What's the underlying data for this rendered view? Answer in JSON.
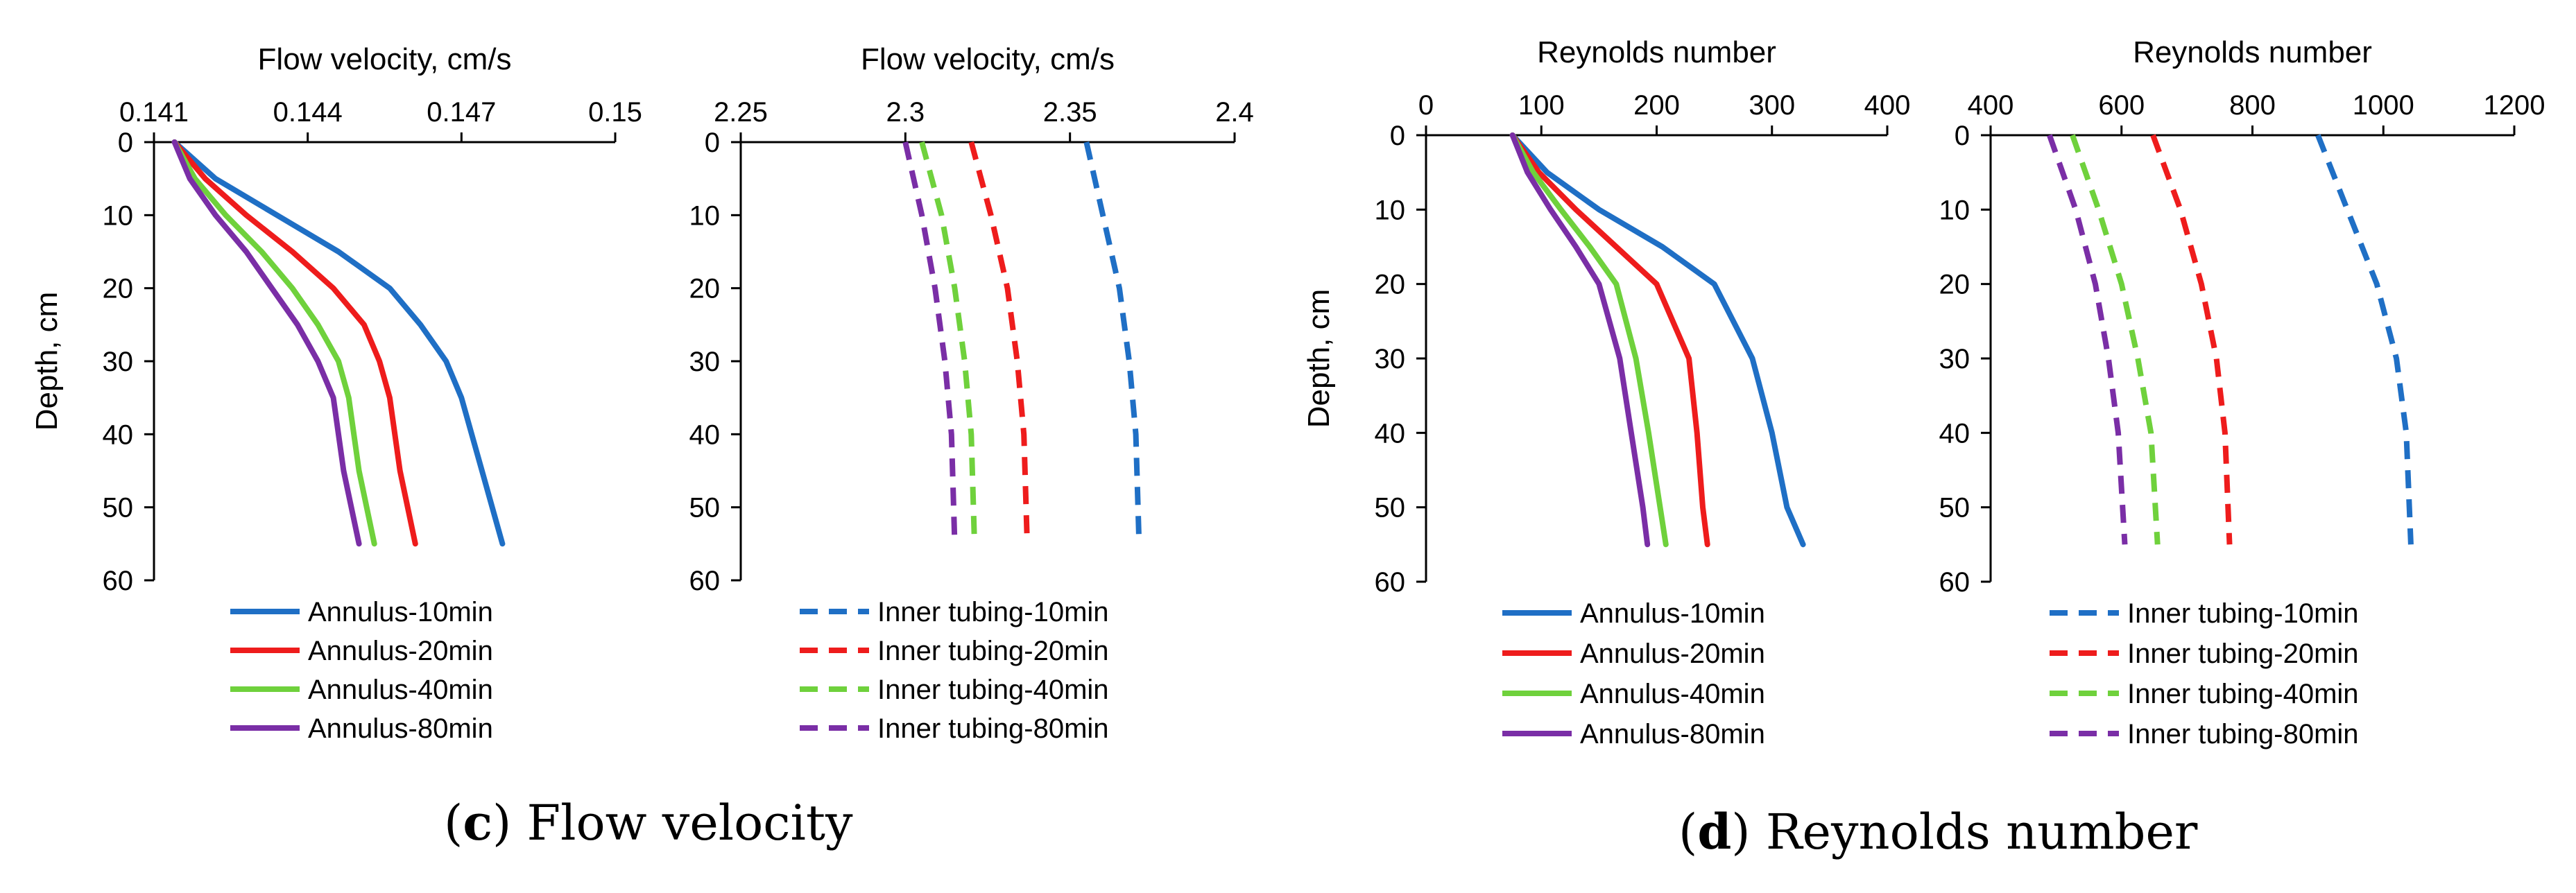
{
  "captions": {
    "c": {
      "letter": "c",
      "text": "Flow velocity"
    },
    "d": {
      "letter": "d",
      "text": "Reynolds number"
    }
  },
  "colors": {
    "10min": "#1f6fc5",
    "20min": "#ee1c1c",
    "40min": "#6fd13c",
    "80min": "#7a2ea6",
    "axis": "#000000"
  },
  "chart_data": [
    {
      "id": "c-annulus",
      "type": "line",
      "title": "Flow velocity, cm/s",
      "xlabel": "Flow velocity, cm/s",
      "ylabel": "Depth, cm",
      "xlim": [
        0.141,
        0.15
      ],
      "ylim": [
        0,
        60
      ],
      "xticks": [
        0.141,
        0.144,
        0.147,
        0.15
      ],
      "xtick_labels": [
        "0.141",
        "0.144",
        "0.147",
        "0.15"
      ],
      "yticks": [
        0,
        10,
        20,
        30,
        40,
        50,
        60
      ],
      "ytick_labels": [
        "0",
        "10",
        "20",
        "30",
        "40",
        "50",
        "60"
      ],
      "dashed": false,
      "legend": "below",
      "series": [
        {
          "name": "Annulus-10min",
          "key": "10min",
          "x": [
            0.1414,
            0.1422,
            0.1434,
            0.1446,
            0.1456,
            0.1462,
            0.1467,
            0.147,
            0.1474,
            0.1478
          ],
          "y": [
            0,
            5,
            10,
            15,
            20,
            25,
            30,
            35,
            45,
            55
          ]
        },
        {
          "name": "Annulus-20min",
          "key": "20min",
          "x": [
            0.1414,
            0.142,
            0.1428,
            0.1437,
            0.1445,
            0.1451,
            0.1454,
            0.1456,
            0.1458,
            0.1461
          ],
          "y": [
            0,
            5,
            10,
            15,
            20,
            25,
            30,
            35,
            45,
            55
          ]
        },
        {
          "name": "Annulus-40min",
          "key": "40min",
          "x": [
            0.1414,
            0.1418,
            0.1424,
            0.1431,
            0.1437,
            0.1442,
            0.1446,
            0.1448,
            0.145,
            0.1453
          ],
          "y": [
            0,
            5,
            10,
            15,
            20,
            25,
            30,
            35,
            45,
            55
          ]
        },
        {
          "name": "Annulus-80min",
          "key": "80min",
          "x": [
            0.1414,
            0.1417,
            0.1422,
            0.1428,
            0.1433,
            0.1438,
            0.1442,
            0.1445,
            0.1447,
            0.145
          ],
          "y": [
            0,
            5,
            10,
            15,
            20,
            25,
            30,
            35,
            45,
            55
          ]
        }
      ]
    },
    {
      "id": "c-inner",
      "type": "line",
      "title": "Flow velocity, cm/s",
      "xlabel": "Flow velocity, cm/s",
      "ylabel": "",
      "xlim": [
        2.25,
        2.4
      ],
      "ylim": [
        0,
        60
      ],
      "xticks": [
        2.25,
        2.3,
        2.35,
        2.4
      ],
      "xtick_labels": [
        "2.25",
        "2.3",
        "2.35",
        "2.4"
      ],
      "yticks": [
        0,
        10,
        20,
        30,
        40,
        50,
        60
      ],
      "ytick_labels": [
        "0",
        "10",
        "20",
        "30",
        "40",
        "50",
        "60"
      ],
      "dashed": true,
      "legend": "below",
      "series": [
        {
          "name": "Inner tubing-10min",
          "key": "10min",
          "x": [
            2.355,
            2.36,
            2.365,
            2.368,
            2.37,
            2.371
          ],
          "y": [
            0,
            10,
            20,
            30,
            40,
            55
          ]
        },
        {
          "name": "Inner tubing-20min",
          "key": "20min",
          "x": [
            2.32,
            2.326,
            2.331,
            2.334,
            2.336,
            2.337
          ],
          "y": [
            0,
            10,
            20,
            30,
            40,
            55
          ]
        },
        {
          "name": "Inner tubing-40min",
          "key": "40min",
          "x": [
            2.305,
            2.311,
            2.315,
            2.318,
            2.32,
            2.321
          ],
          "y": [
            0,
            10,
            20,
            30,
            40,
            55
          ]
        },
        {
          "name": "Inner tubing-80min",
          "key": "80min",
          "x": [
            2.3,
            2.305,
            2.309,
            2.312,
            2.314,
            2.315
          ],
          "y": [
            0,
            10,
            20,
            30,
            40,
            55
          ]
        }
      ]
    },
    {
      "id": "d-annulus",
      "type": "line",
      "title": "Reynolds number",
      "xlabel": "Reynolds number",
      "ylabel": "Depth, cm",
      "xlim": [
        0,
        400
      ],
      "ylim": [
        0,
        60
      ],
      "xticks": [
        0,
        100,
        200,
        300,
        400
      ],
      "xtick_labels": [
        "0",
        "100",
        "200",
        "300",
        "400"
      ],
      "yticks": [
        0,
        10,
        20,
        30,
        40,
        50,
        60
      ],
      "ytick_labels": [
        "0",
        "10",
        "20",
        "30",
        "40",
        "50",
        "60"
      ],
      "dashed": false,
      "legend": "below",
      "series": [
        {
          "name": "Annulus-10min",
          "key": "10min",
          "x": [
            75,
            105,
            150,
            205,
            250,
            283,
            300,
            313,
            327
          ],
          "y": [
            0,
            5,
            10,
            15,
            20,
            30,
            40,
            50,
            55
          ]
        },
        {
          "name": "Annulus-20min",
          "key": "20min",
          "x": [
            75,
            98,
            130,
            165,
            200,
            228,
            235,
            240,
            244
          ],
          "y": [
            0,
            5,
            10,
            15,
            20,
            30,
            40,
            50,
            55
          ]
        },
        {
          "name": "Annulus-40min",
          "key": "40min",
          "x": [
            75,
            93,
            117,
            142,
            165,
            182,
            193,
            203,
            208
          ],
          "y": [
            0,
            5,
            10,
            15,
            20,
            30,
            40,
            50,
            55
          ]
        },
        {
          "name": "Annulus-80min",
          "key": "80min",
          "x": [
            75,
            88,
            108,
            130,
            150,
            168,
            178,
            188,
            192
          ],
          "y": [
            0,
            5,
            10,
            15,
            20,
            30,
            40,
            50,
            55
          ]
        }
      ]
    },
    {
      "id": "d-inner",
      "type": "line",
      "title": "Reynolds number",
      "xlabel": "Reynolds number",
      "ylabel": "",
      "xlim": [
        400,
        1200
      ],
      "ylim": [
        0,
        60
      ],
      "xticks": [
        400,
        600,
        800,
        1000,
        1200
      ],
      "xtick_labels": [
        "400",
        "600",
        "800",
        "1000",
        "1200"
      ],
      "yticks": [
        0,
        10,
        20,
        30,
        40,
        50,
        60
      ],
      "ytick_labels": [
        "0",
        "10",
        "20",
        "30",
        "40",
        "50",
        "60"
      ],
      "dashed": true,
      "legend": "below",
      "series": [
        {
          "name": "Inner tubing-10min",
          "key": "10min",
          "x": [
            900,
            945,
            990,
            1020,
            1035,
            1042
          ],
          "y": [
            0,
            10,
            20,
            30,
            40,
            55
          ]
        },
        {
          "name": "Inner tubing-20min",
          "key": "20min",
          "x": [
            648,
            690,
            722,
            745,
            758,
            765
          ],
          "y": [
            0,
            10,
            20,
            30,
            40,
            55
          ]
        },
        {
          "name": "Inner tubing-40min",
          "key": "40min",
          "x": [
            525,
            565,
            600,
            625,
            645,
            655
          ],
          "y": [
            0,
            10,
            20,
            30,
            40,
            55
          ]
        },
        {
          "name": "Inner tubing-80min",
          "key": "80min",
          "x": [
            490,
            530,
            560,
            580,
            595,
            605
          ],
          "y": [
            0,
            10,
            20,
            30,
            40,
            55
          ]
        }
      ]
    }
  ]
}
